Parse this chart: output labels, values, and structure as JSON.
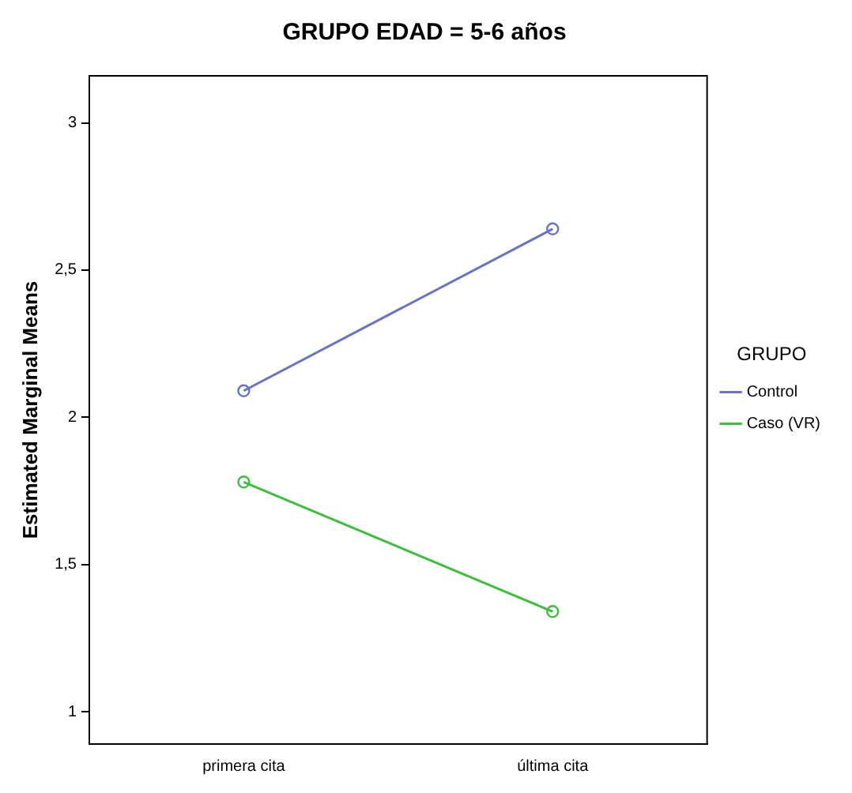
{
  "chart_data": {
    "type": "line",
    "title": "GRUPO EDAD = 5-6 años",
    "ylabel": "Estimated Marginal Means",
    "legend_title": "GRUPO",
    "categories": [
      "primera cita",
      "última cita"
    ],
    "series": [
      {
        "name": "Control",
        "color": "#6673c6",
        "values": [
          2.09,
          2.64
        ]
      },
      {
        "name": "Caso (VR)",
        "color": "#3dbf3d",
        "values": [
          1.78,
          1.34
        ]
      }
    ],
    "ylim": [
      0.89,
      3.16
    ],
    "yticks": [
      {
        "value": 1,
        "label": "1"
      },
      {
        "value": 1.5,
        "label": "1,5"
      },
      {
        "value": 2,
        "label": "2"
      },
      {
        "value": 2.5,
        "label": "2,5"
      },
      {
        "value": 3,
        "label": "3"
      }
    ],
    "grid": false,
    "legend": "right",
    "marker": "circle",
    "line_style": "solid"
  }
}
